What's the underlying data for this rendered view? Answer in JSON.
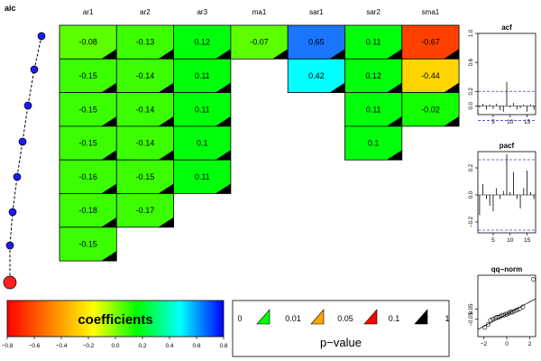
{
  "aic": {
    "title": "aic",
    "points": [
      1,
      2,
      3,
      4,
      5,
      6,
      7,
      8
    ],
    "selected_index": 7
  },
  "chart_data": [
    {
      "type": "heatmap",
      "columns": [
        "ar1",
        "ar2",
        "ar3",
        "ma1",
        "sar1",
        "sar2",
        "sma1"
      ],
      "rows": [
        [
          "-0.08",
          "-0.13",
          "0.12",
          "-0.07",
          "0.65",
          "0.11",
          "-0.67"
        ],
        [
          "-0.15",
          "-0.14",
          "0.11",
          null,
          "0.42",
          "0.12",
          "-0.44"
        ],
        [
          "-0.15",
          "-0.14",
          "0.11",
          null,
          null,
          "0.11",
          "-0.02"
        ],
        [
          "-0.15",
          "-0.14",
          "0.1",
          null,
          null,
          "0.1",
          null
        ],
        [
          "-0.16",
          "-0.15",
          "0.11",
          null,
          null,
          null,
          null
        ],
        [
          "-0.18",
          "-0.17",
          null,
          null,
          null,
          null,
          null
        ],
        [
          "-0.15",
          null,
          null,
          null,
          null,
          null,
          null
        ]
      ],
      "cell_colors": [
        [
          "#5cff00",
          "#3bff00",
          "#00ff0a",
          "#5cff00",
          "#1a75ff",
          "#00ff0a",
          "#ff4000"
        ],
        [
          "#3bff00",
          "#3bff00",
          "#00ff0a",
          null,
          "#00ffff",
          "#00ff0a",
          "#ffd400"
        ],
        [
          "#3bff00",
          "#3bff00",
          "#00ff0a",
          null,
          null,
          "#00ff0a",
          "#12ff00"
        ],
        [
          "#3bff00",
          "#3bff00",
          "#00ff0a",
          null,
          null,
          "#00ff0a",
          null
        ],
        [
          "#3bff00",
          "#3bff00",
          "#00ff0a",
          null,
          null,
          null,
          null
        ],
        [
          "#3bff00",
          "#3bff00",
          null,
          null,
          null,
          null,
          null
        ],
        [
          "#3bff00",
          null,
          null,
          null,
          null,
          null,
          null
        ]
      ],
      "pvalue_flag_color": "#000000"
    },
    {
      "type": "bar",
      "title": "acf",
      "lags": [
        1,
        2,
        3,
        4,
        5,
        6,
        7,
        8,
        9,
        10,
        11,
        12,
        13,
        14,
        15,
        16,
        17
      ],
      "values": [
        -0.02,
        0.03,
        -0.05,
        0.02,
        -0.04,
        0.03,
        -0.06,
        -0.08,
        0.33,
        -0.02,
        0.04,
        -0.05,
        -0.03,
        0.02,
        -0.08,
        0.02,
        -0.05
      ],
      "ylim": [
        -0.12,
        1.0
      ],
      "yticks": [
        0.0,
        0.2,
        0.6,
        1.0
      ],
      "ytick_labels": [
        "0.0",
        "0.2",
        "0.6",
        "1.0"
      ],
      "xticks": [
        5,
        10,
        15
      ],
      "xtick_labels": [
        "5",
        "10",
        "15"
      ],
      "ci": 0.2,
      "ci_color": "#4040cc"
    },
    {
      "type": "bar",
      "title": "pacf",
      "lags": [
        1,
        2,
        3,
        4,
        5,
        6,
        7,
        8,
        9,
        10,
        11,
        12,
        13,
        14,
        15,
        16,
        17
      ],
      "values": [
        -0.15,
        0.08,
        -0.03,
        -0.08,
        -0.12,
        0.05,
        -0.03,
        0.03,
        0.3,
        0.02,
        0.17,
        -0.03,
        -0.1,
        0.05,
        0.18,
        0.02,
        -0.03
      ],
      "ylim": [
        -0.28,
        0.32
      ],
      "yticks": [
        -0.2,
        0.0,
        0.2
      ],
      "ytick_labels": [
        "−0.2",
        "0.0",
        "0.2"
      ],
      "xticks": [
        5,
        10,
        15
      ],
      "xtick_labels": [
        "5",
        "10",
        "15"
      ],
      "ci": 0.26,
      "ci_color": "#4040cc"
    },
    {
      "type": "scatter",
      "title": "qq−norm",
      "x": [
        -1.9,
        -1.6,
        -1.4,
        -1.2,
        -1.0,
        -0.85,
        -0.7,
        -0.55,
        -0.4,
        -0.25,
        -0.1,
        0.05,
        0.2,
        0.35,
        0.5,
        0.7,
        0.9,
        1.1,
        1.4,
        2.3
      ],
      "y": [
        -0.13,
        -0.1,
        -0.06,
        -0.05,
        -0.04,
        -0.03,
        -0.03,
        -0.02,
        -0.01,
        -0.01,
        0.0,
        0.0,
        0.01,
        0.02,
        0.02,
        0.03,
        0.04,
        0.05,
        0.07,
        0.34
      ],
      "xlim": [
        -2.5,
        2.5
      ],
      "ylim": [
        -0.22,
        0.38
      ],
      "xticks": [
        -2,
        0,
        2
      ],
      "xtick_labels": [
        "−2",
        "0",
        "2"
      ],
      "yticks": [
        -0.05,
        0.05
      ],
      "ytick_labels": [
        "−0.05",
        "0.05"
      ],
      "ref_line": {
        "intercept": 0.0,
        "slope": 0.06
      }
    }
  ],
  "colorbar": {
    "title": "coefficients",
    "ticks": [
      -0.8,
      -0.6,
      -0.4,
      -0.2,
      0.0,
      0.2,
      0.4,
      0.6,
      0.8
    ],
    "tick_labels": [
      "−0.8",
      "−0.6",
      "−0.4",
      "−0.2",
      "0.0",
      "0.2",
      "0.4",
      "0.6",
      "0.8"
    ]
  },
  "pvalue_legend": {
    "title": "p−value",
    "labels": [
      "0",
      "0.01",
      "0.05",
      "0.1",
      "1"
    ],
    "flag_colors": [
      "#00ff00",
      "#ffa500",
      "#ff0000",
      "#000000"
    ]
  }
}
